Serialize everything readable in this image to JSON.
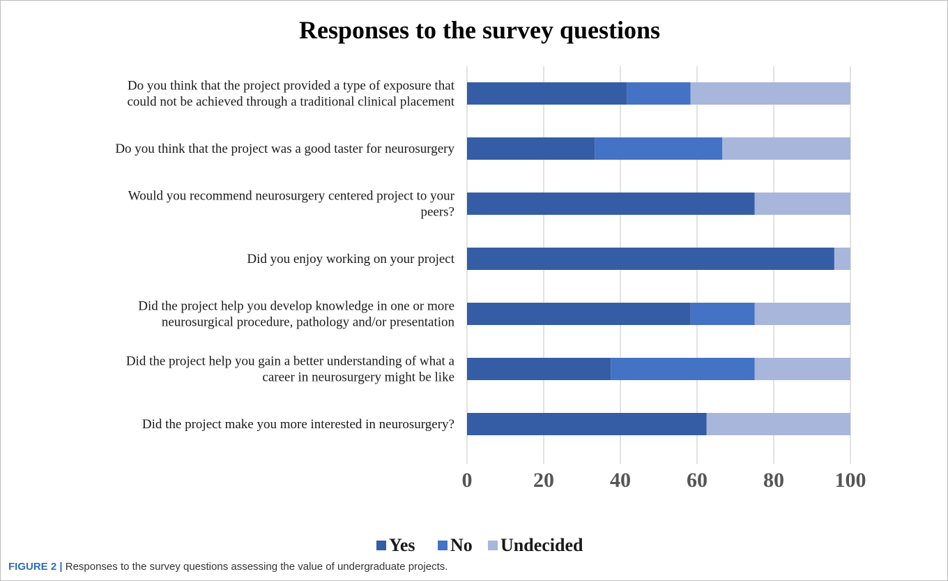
{
  "caption": {
    "figure_number": "FIGURE 2",
    "separator": " | ",
    "text": "Responses to the survey questions assessing the value of undergraduate projects."
  },
  "chart_data": {
    "type": "bar",
    "orientation": "horizontal",
    "stacked": true,
    "title": "Responses to the survey questions",
    "xlabel": "",
    "ylabel": "",
    "xlim": [
      0,
      100
    ],
    "x_ticks": [
      0,
      20,
      40,
      60,
      80,
      100
    ],
    "grid": "vertical",
    "legend_position": "bottom",
    "categories": [
      [
        "Do you think that the project provided a type of exposure that",
        "could not be achieved through a traditional clinical placement"
      ],
      [
        "Do you think that the project was a good taster for neurosurgery"
      ],
      [
        "Would you recommend neurosurgery centered project to your",
        "peers?"
      ],
      [
        "Did you enjoy working on your project"
      ],
      [
        "Did the project help you develop knowledge in one or more",
        "neurosurgical procedure, pathology and/or presentation"
      ],
      [
        "Did the project help you gain a better understanding of what a",
        "career in neurosurgery might be like"
      ],
      [
        "Did the project make you more interested in neurosurgery?"
      ]
    ],
    "series": [
      {
        "name": "Yes",
        "color": "#355da6",
        "values": [
          41.7,
          33.3,
          75.0,
          95.8,
          58.3,
          37.5,
          62.5
        ]
      },
      {
        "name": "No",
        "color": "#4472c4",
        "values": [
          16.6,
          33.3,
          0,
          0,
          16.7,
          37.5,
          0
        ]
      },
      {
        "name": "Undecided",
        "color": "#a8b6dc",
        "values": [
          41.7,
          33.4,
          25.0,
          4.2,
          25.0,
          25.0,
          37.5
        ]
      }
    ]
  }
}
